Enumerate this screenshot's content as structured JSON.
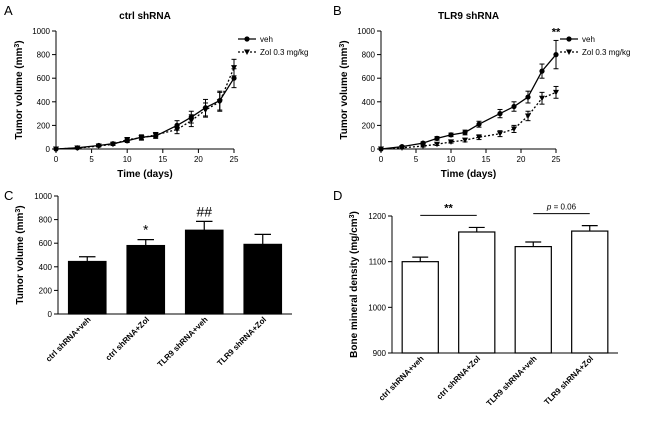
{
  "chart_data": [
    {
      "panel": "A",
      "type": "line",
      "title": "ctrl shRNA",
      "xlabel": "Time (days)",
      "ylabel": "Tumor volume (mm",
      "ylabel_sup": "3",
      "ylabel_end": ")",
      "xlim": [
        0,
        25
      ],
      "ylim": [
        0,
        1000
      ],
      "xticks": [
        0,
        5,
        10,
        15,
        20,
        25
      ],
      "yticks": [
        0,
        200,
        400,
        600,
        800,
        1000
      ],
      "x": [
        0,
        3,
        6,
        8,
        10,
        12,
        14,
        17,
        19,
        21,
        23,
        25
      ],
      "series": [
        {
          "name": "veh",
          "style": "solid-circle",
          "values": [
            0,
            10,
            30,
            45,
            70,
            100,
            110,
            200,
            270,
            350,
            410,
            600
          ],
          "errors": [
            0,
            5,
            8,
            10,
            15,
            20,
            20,
            40,
            50,
            70,
            80,
            80
          ]
        },
        {
          "name": "Zol 0.3 mg/kg",
          "style": "dotted-triangle",
          "values": [
            0,
            8,
            25,
            40,
            80,
            95,
            120,
            165,
            240,
            330,
            400,
            690
          ],
          "errors": [
            0,
            5,
            8,
            10,
            15,
            20,
            20,
            35,
            50,
            60,
            80,
            70
          ]
        }
      ],
      "annotations": []
    },
    {
      "panel": "B",
      "type": "line",
      "title": "TLR9 shRNA",
      "xlabel": "Time (days)",
      "ylabel": "Tumor volume (mm",
      "ylabel_sup": "3",
      "ylabel_end": ")",
      "xlim": [
        0,
        25
      ],
      "ylim": [
        0,
        1000
      ],
      "xticks": [
        0,
        5,
        10,
        15,
        20,
        25
      ],
      "yticks": [
        0,
        200,
        400,
        600,
        800,
        1000
      ],
      "x": [
        0,
        3,
        6,
        8,
        10,
        12,
        14,
        17,
        19,
        21,
        23,
        25
      ],
      "series": [
        {
          "name": "veh",
          "style": "solid-circle",
          "values": [
            0,
            20,
            50,
            90,
            120,
            140,
            210,
            300,
            360,
            440,
            660,
            800
          ],
          "errors": [
            0,
            5,
            10,
            15,
            15,
            20,
            25,
            35,
            40,
            50,
            60,
            120
          ]
        },
        {
          "name": "Zol 0.3 mg/kg",
          "style": "dotted-triangle",
          "values": [
            0,
            10,
            25,
            40,
            60,
            75,
            100,
            130,
            170,
            280,
            430,
            480
          ],
          "errors": [
            0,
            5,
            8,
            10,
            10,
            15,
            20,
            25,
            30,
            40,
            50,
            50
          ]
        }
      ],
      "annotations": [
        {
          "text": "**",
          "x": 25
        }
      ]
    },
    {
      "panel": "C",
      "type": "bar",
      "ylabel": "Tumor volume (mm",
      "ylabel_sup": "3",
      "ylabel_end": ")",
      "ylim": [
        0,
        1000
      ],
      "yticks": [
        0,
        200,
        400,
        600,
        800,
        1000
      ],
      "categories": [
        "ctrl shRNA+veh",
        "ctrl shRNA+Zol",
        "TLR9 shRNA+veh",
        "TLR9 shRNA+Zol"
      ],
      "values": [
        445,
        580,
        710,
        590
      ],
      "errors": [
        40,
        50,
        75,
        85
      ],
      "fill": "#000000",
      "bar_annotations": [
        "",
        "*",
        "##",
        ""
      ]
    },
    {
      "panel": "D",
      "type": "bar",
      "ylabel": "Bone mineral density (mg/cm",
      "ylabel_sup": "3",
      "ylabel_end": ")",
      "ylim": [
        900,
        1200
      ],
      "yticks": [
        900,
        1000,
        1100,
        1200
      ],
      "categories": [
        "ctrl shRNA+veh",
        "ctrl shRNA+Zol",
        "TLR9 shRNA+veh",
        "TLR9 shRNA+Zol"
      ],
      "values": [
        1100,
        1165,
        1133,
        1167
      ],
      "errors": [
        10,
        10,
        10,
        12
      ],
      "fill": "#ffffff",
      "brackets": [
        {
          "from": 0,
          "to": 1,
          "label": "**",
          "italic_p": false
        },
        {
          "from": 2,
          "to": 3,
          "label": " = 0.06",
          "p": "p",
          "italic_p": true
        }
      ]
    }
  ]
}
